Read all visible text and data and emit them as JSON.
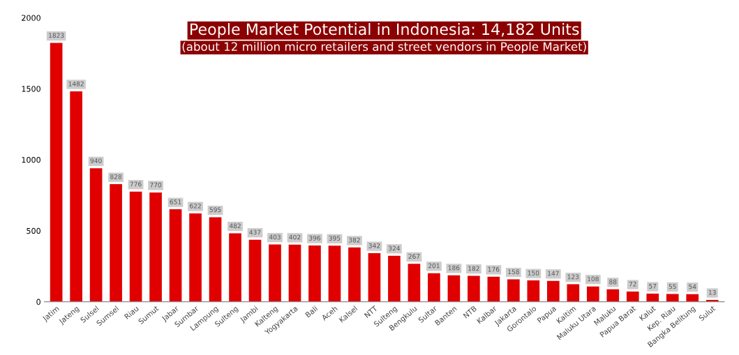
{
  "chart_data": {
    "type": "bar",
    "title": "People Market Potential in Indonesia: 14,182 Units",
    "subtitle": "(about 12 million micro retailers and street vendors in People Market)",
    "categories": [
      "Jatim",
      "Jateng",
      "Sulsel",
      "Sumsel",
      "Riau",
      "Sumut",
      "Jabar",
      "Sumbar",
      "Lampung",
      "Sulteng",
      "Jambi",
      "Kalteng",
      "Yogyakarta",
      "Bali",
      "Aceh",
      "Kalsel",
      "NTT",
      "Sulteng",
      "Bengkulu",
      "Sultar",
      "Banten",
      "NTB",
      "Kalbar",
      "Jakarta",
      "Gorontalo",
      "Papua",
      "Kaltim",
      "Maluku Utara",
      "Maluku",
      "Papua Barat",
      "Kalut",
      "Kep. Riau",
      "Bangka Belitung",
      "Sulut"
    ],
    "values": [
      1823,
      1482,
      940,
      828,
      776,
      770,
      651,
      622,
      595,
      482,
      437,
      403,
      402,
      396,
      395,
      382,
      342,
      324,
      267,
      201,
      186,
      182,
      176,
      158,
      150,
      147,
      123,
      108,
      88,
      72,
      57,
      55,
      54,
      13
    ],
    "color": "#e00000",
    "ylim": [
      0,
      2000
    ],
    "yticks": [
      0,
      500,
      1000,
      1500,
      2000
    ],
    "grid": false,
    "data_labels": true
  }
}
